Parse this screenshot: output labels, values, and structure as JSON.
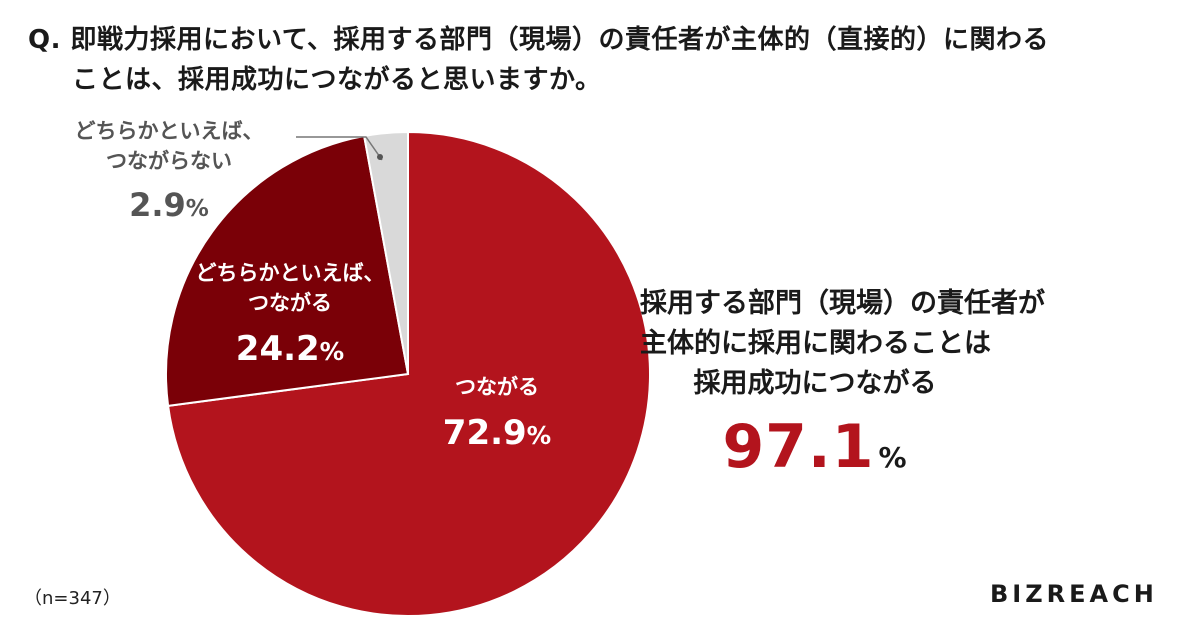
{
  "question": {
    "line1": "Q. 即戦力採用において、採用する部門（現場）の責任者が主体的（直接的）に関わる",
    "line2": "ことは、採用成功につながると思いますか。"
  },
  "chart_data": {
    "type": "pie",
    "start_angle_deg": 0,
    "direction": "clockwise",
    "slices": [
      {
        "label_lines": [
          "つながる"
        ],
        "value": 72.9,
        "display": "72.9",
        "color": "#b3141d"
      },
      {
        "label_lines": [
          "どちらかといえば、",
          "つながる"
        ],
        "value": 24.2,
        "display": "24.2",
        "color": "#7a0007"
      },
      {
        "label_lines": [
          "どちらかといえば、",
          "つながらない"
        ],
        "value": 2.9,
        "display": "2.9",
        "color": "#d9d9d9"
      }
    ],
    "unit": "%",
    "sample_size": "（n=347）",
    "callout": {
      "lines": [
        "採用する部門（現場）の責任者が",
        "主体的に採用に関わることは",
        "採用成功につながる"
      ],
      "value": "97.1",
      "unit": "%"
    }
  },
  "brand": "BIZREACH"
}
